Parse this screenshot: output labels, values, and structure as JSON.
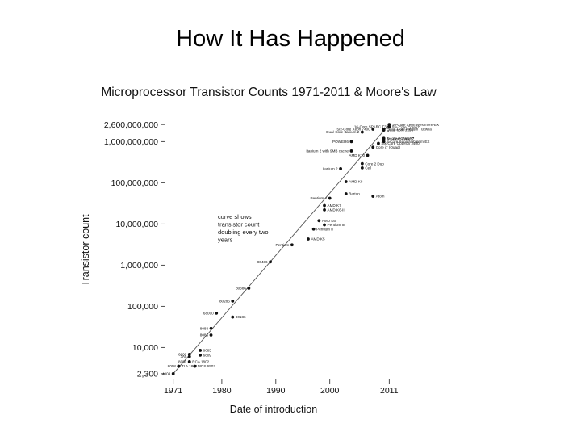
{
  "slide": {
    "title": "How It Has Happened"
  },
  "chart_data": {
    "type": "scatter",
    "title": "Microprocessor Transistor Counts 1971-2011 & Moore's Law",
    "xlabel": "Date of introduction",
    "ylabel": "Transistor count",
    "xlim": [
      1970,
      2012
    ],
    "ylim": [
      2000,
      3000000000
    ],
    "y_scale": "log",
    "grid": false,
    "x_ticks": [
      {
        "value": 1971,
        "label": "1971"
      },
      {
        "value": 1980,
        "label": "1980"
      },
      {
        "value": 1990,
        "label": "1990"
      },
      {
        "value": 2000,
        "label": "2000"
      },
      {
        "value": 2011,
        "label": "2011"
      }
    ],
    "y_ticks": [
      {
        "value": 2300,
        "label": "2,300"
      },
      {
        "value": 10000,
        "label": "10,000"
      },
      {
        "value": 100000,
        "label": "100,000"
      },
      {
        "value": 1000000,
        "label": "1,000,000"
      },
      {
        "value": 10000000,
        "label": "10,000,000"
      },
      {
        "value": 100000000,
        "label": "100,000,000"
      },
      {
        "value": 1000000000,
        "label": "1,000,000,000"
      },
      {
        "value": 2600000000,
        "label": "2,600,000,000"
      }
    ],
    "trend": {
      "x": [
        1971,
        2011
      ],
      "y": [
        2300,
        2600000000
      ]
    },
    "annotation": "curve shows transistor count doubling every two years",
    "points": [
      {
        "x": 1971,
        "y": 2300,
        "label": "4004"
      },
      {
        "x": 1972,
        "y": 3500,
        "label": "TI A 1802"
      },
      {
        "x": 1974,
        "y": 4500,
        "label": "RCA 1802"
      },
      {
        "x": 1972,
        "y": 3500,
        "label": "8008"
      },
      {
        "x": 1974,
        "y": 4500,
        "label": "8080"
      },
      {
        "x": 1975,
        "y": 3500,
        "label": "MOS 6502"
      },
      {
        "x": 1974,
        "y": 6000,
        "label": "Z80"
      },
      {
        "x": 1974,
        "y": 6800,
        "label": "6800"
      },
      {
        "x": 1976,
        "y": 6500,
        "label": "6809"
      },
      {
        "x": 1976,
        "y": 8500,
        "label": "8085"
      },
      {
        "x": 1978,
        "y": 20000,
        "label": "8086"
      },
      {
        "x": 1978,
        "y": 29000,
        "label": "8088"
      },
      {
        "x": 1979,
        "y": 68000,
        "label": "68000"
      },
      {
        "x": 1982,
        "y": 55000,
        "label": "80186"
      },
      {
        "x": 1982,
        "y": 134000,
        "label": "80286"
      },
      {
        "x": 1985,
        "y": 275000,
        "label": "80386"
      },
      {
        "x": 1989,
        "y": 1200000,
        "label": "80486"
      },
      {
        "x": 1993,
        "y": 3100000,
        "label": "Pentium"
      },
      {
        "x": 1996,
        "y": 4300000,
        "label": "AMD K5"
      },
      {
        "x": 1997,
        "y": 7500000,
        "label": "Pentium II"
      },
      {
        "x": 1999,
        "y": 9500000,
        "label": "Pentium III"
      },
      {
        "x": 1998,
        "y": 12000000,
        "label": "AMD K6"
      },
      {
        "x": 1999,
        "y": 22000000,
        "label": "AMD K6-III"
      },
      {
        "x": 1999,
        "y": 28000000,
        "label": "AMD K7"
      },
      {
        "x": 2000,
        "y": 42000000,
        "label": "Pentium 4"
      },
      {
        "x": 2003,
        "y": 106000000,
        "label": "AMD K8"
      },
      {
        "x": 2003,
        "y": 54000000,
        "label": "Barton"
      },
      {
        "x": 2008,
        "y": 47000000,
        "label": "Atom"
      },
      {
        "x": 2002,
        "y": 220000000,
        "label": "Itanium 2"
      },
      {
        "x": 2006,
        "y": 291000000,
        "label": "Core 2 Duo"
      },
      {
        "x": 2006,
        "y": 230000000,
        "label": "Cell"
      },
      {
        "x": 2004,
        "y": 592000000,
        "label": "Itanium 2 with 9MB cache"
      },
      {
        "x": 2007,
        "y": 463000000,
        "label": "AMD K10"
      },
      {
        "x": 2004,
        "y": 1000000000,
        "label": "POWER6"
      },
      {
        "x": 2008,
        "y": 731000000,
        "label": "Core i7 (Quad)"
      },
      {
        "x": 2009,
        "y": 904000000,
        "label": "Six-Core Opteron 2400"
      },
      {
        "x": 2006,
        "y": 1700000000,
        "label": "Dual-Core Itanium 2"
      },
      {
        "x": 2010,
        "y": 1170000000,
        "label": "Six-Core Core i7"
      },
      {
        "x": 2010,
        "y": 1000000000,
        "label": "8-Core Xeon Nehalem-EX"
      },
      {
        "x": 2008,
        "y": 2000000000,
        "label": "Six-Core Xeon 7400"
      },
      {
        "x": 2010,
        "y": 2000000000,
        "label": "Quad-Core Itanium Tukwila"
      },
      {
        "x": 2010,
        "y": 1900000000,
        "label": "Quad-core z196"
      },
      {
        "x": 2010,
        "y": 1200000000,
        "label": "8-core POWER7"
      },
      {
        "x": 2011,
        "y": 2270000000,
        "label": "Six-Core Core i7"
      },
      {
        "x": 2011,
        "y": 2600000000,
        "label": "10-Core Xeon Westmere-EX"
      },
      {
        "x": 2011,
        "y": 2300000000,
        "label": "16-Core SPARC T3"
      }
    ]
  }
}
